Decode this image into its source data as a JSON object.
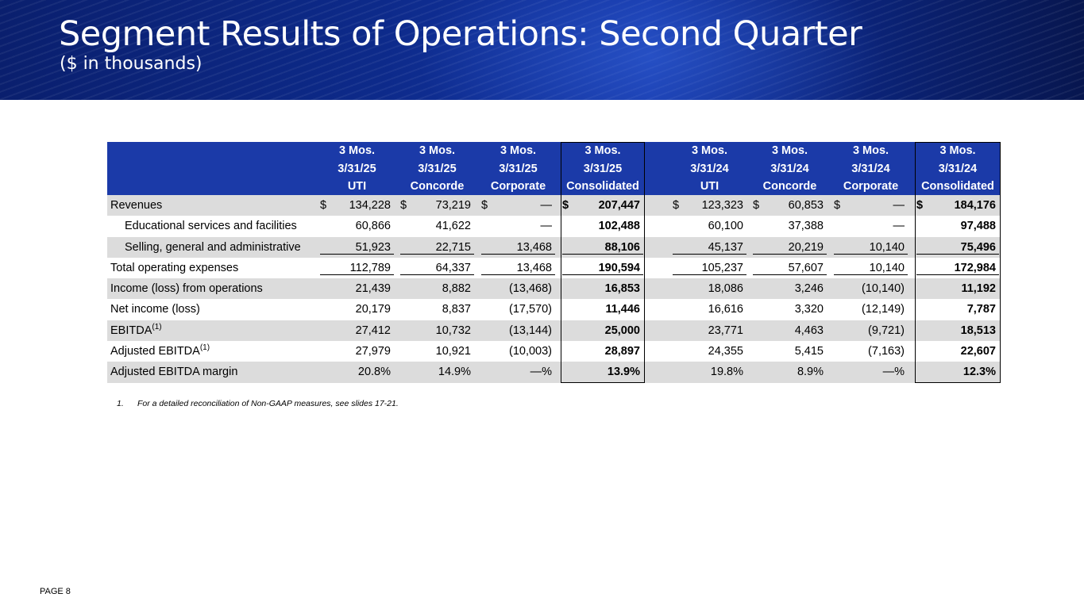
{
  "header": {
    "title": "Segment Results of Operations: Second Quarter",
    "subtitle": "($ in thousands)"
  },
  "table": {
    "columns": [
      {
        "line1": "3 Mos.",
        "line2": "3/31/25",
        "line3": "UTI"
      },
      {
        "line1": "3 Mos.",
        "line2": "3/31/25",
        "line3": "Concorde"
      },
      {
        "line1": "3 Mos.",
        "line2": "3/31/25",
        "line3": "Corporate"
      },
      {
        "line1": "3 Mos.",
        "line2": "3/31/25",
        "line3": "Consolidated"
      },
      {
        "line1": "3 Mos.",
        "line2": "3/31/24",
        "line3": "UTI"
      },
      {
        "line1": "3 Mos.",
        "line2": "3/31/24",
        "line3": "Concorde"
      },
      {
        "line1": "3 Mos.",
        "line2": "3/31/24",
        "line3": "Corporate"
      },
      {
        "line1": "3 Mos.",
        "line2": "3/31/24",
        "line3": "Consolidated"
      }
    ],
    "currency_symbol": "$",
    "rows": [
      {
        "label": "Revenues",
        "sup": "",
        "values": [
          "134,228",
          "73,219",
          "—",
          "207,447",
          "123,323",
          "60,853",
          "—",
          "184,176"
        ]
      },
      {
        "label": "Educational services and facilities",
        "sup": "",
        "values": [
          "60,866",
          "41,622",
          "—",
          "102,488",
          "60,100",
          "37,388",
          "—",
          "97,488"
        ]
      },
      {
        "label": "Selling, general and administrative",
        "sup": "",
        "values": [
          "51,923",
          "22,715",
          "13,468",
          "88,106",
          "45,137",
          "20,219",
          "10,140",
          "75,496"
        ]
      },
      {
        "label": "Total operating expenses",
        "sup": "",
        "values": [
          "112,789",
          "64,337",
          "13,468",
          "190,594",
          "105,237",
          "57,607",
          "10,140",
          "172,984"
        ]
      },
      {
        "label": "Income (loss) from operations",
        "sup": "",
        "values": [
          "21,439",
          "8,882",
          "(13,468)",
          "16,853",
          "18,086",
          "3,246",
          "(10,140)",
          "11,192"
        ]
      },
      {
        "label": "Net income (loss)",
        "sup": "",
        "values": [
          "20,179",
          "8,837",
          "(17,570)",
          "11,446",
          "16,616",
          "3,320",
          "(12,149)",
          "7,787"
        ]
      },
      {
        "label": "EBITDA",
        "sup": "(1)",
        "values": [
          "27,412",
          "10,732",
          "(13,144)",
          "25,000",
          "23,771",
          "4,463",
          "(9,721)",
          "18,513"
        ]
      },
      {
        "label": "Adjusted EBITDA",
        "sup": "(1)",
        "values": [
          "27,979",
          "10,921",
          "(10,003)",
          "28,897",
          "24,355",
          "5,415",
          "(7,163)",
          "22,607"
        ]
      },
      {
        "label": "Adjusted EBITDA margin",
        "sup": "",
        "values": [
          "20.8%",
          "14.9%",
          "—%",
          "13.9%",
          "19.8%",
          "8.9%",
          "—%",
          "12.3%"
        ]
      }
    ]
  },
  "footnote": {
    "number": "1.",
    "text": "For a detailed reconciliation of Non-GAAP measures, see slides 17-21."
  },
  "page_label": "PAGE 8"
}
